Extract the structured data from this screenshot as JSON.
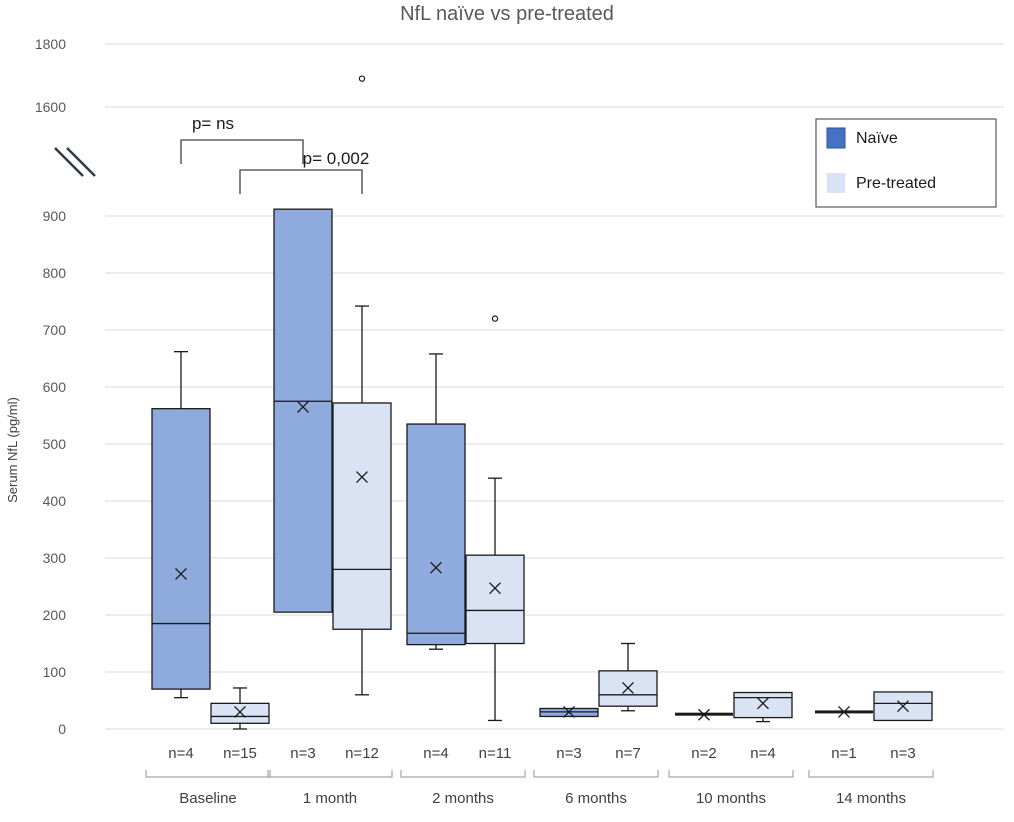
{
  "chart_data": {
    "type": "boxplot",
    "title": "NfL naïve vs pre-treated",
    "ylabel": "Serum NfL (pg/ml)",
    "y_break": true,
    "lower_ticks": [
      0,
      100,
      200,
      300,
      400,
      500,
      600,
      700,
      800,
      900
    ],
    "upper_ticks": [
      1600,
      1800
    ],
    "lower_range": [
      0,
      900
    ],
    "upper_range": [
      1450,
      1800
    ],
    "legend": {
      "position": "top-right",
      "entries": [
        {
          "label": "Naïve",
          "color": "#4472C4",
          "fill": "#8FAADC"
        },
        {
          "label": "Pre-treated",
          "color": "#DAE3F3",
          "fill": "#DAE3F3"
        }
      ]
    },
    "fill_naive": "#8FAADC",
    "fill_pretreated": "#DAE3F3",
    "groups": [
      {
        "name": "Baseline",
        "boxes": [
          {
            "series": "naive",
            "n": "n=4",
            "min": 55,
            "q1": 70,
            "median": 185,
            "q3": 562,
            "max": 662,
            "mean": 272,
            "outliers": []
          },
          {
            "series": "pretreated",
            "n": "n=15",
            "min": 0,
            "q1": 10,
            "median": 22,
            "q3": 45,
            "max": 72,
            "mean": 30,
            "outliers": []
          }
        ]
      },
      {
        "name": "1 month",
        "boxes": [
          {
            "series": "naive",
            "n": "n=3",
            "min": 205,
            "q1": 205,
            "median": 575,
            "q3": 912,
            "max": 912,
            "mean": 565,
            "outliers": []
          },
          {
            "series": "pretreated",
            "n": "n=12",
            "min": 60,
            "q1": 175,
            "median": 280,
            "q3": 572,
            "max": 742,
            "mean": 442,
            "outliers": [
              1690
            ]
          }
        ]
      },
      {
        "name": "2 months",
        "boxes": [
          {
            "series": "naive",
            "n": "n=4",
            "min": 140,
            "q1": 148,
            "median": 168,
            "q3": 535,
            "max": 658,
            "mean": 283,
            "outliers": []
          },
          {
            "series": "pretreated",
            "n": "n=11",
            "min": 15,
            "q1": 150,
            "median": 208,
            "q3": 305,
            "max": 440,
            "mean": 247,
            "outliers": [
              720
            ]
          }
        ]
      },
      {
        "name": "6 months",
        "boxes": [
          {
            "series": "naive",
            "n": "n=3",
            "min": 22,
            "q1": 22,
            "median": 30,
            "q3": 36,
            "max": 36,
            "mean": 30,
            "outliers": []
          },
          {
            "series": "pretreated",
            "n": "n=7",
            "min": 32,
            "q1": 40,
            "median": 60,
            "q3": 102,
            "max": 150,
            "mean": 72,
            "outliers": []
          }
        ]
      },
      {
        "name": "10 months",
        "boxes": [
          {
            "series": "naive",
            "n": "n=2",
            "min": 24,
            "q1": 24,
            "median": 25,
            "q3": 26,
            "max": 26,
            "mean": 25,
            "outliers": []
          },
          {
            "series": "pretreated",
            "n": "n=4",
            "min": 13,
            "q1": 20,
            "median": 55,
            "q3": 64,
            "max": 64,
            "mean": 45,
            "outliers": []
          }
        ]
      },
      {
        "name": "14 months",
        "boxes": [
          {
            "series": "naive",
            "n": "n=1",
            "min": 30,
            "q1": 30,
            "median": 30,
            "q3": 30,
            "max": 30,
            "mean": 30,
            "outliers": []
          },
          {
            "series": "pretreated",
            "n": "n=3",
            "min": 15,
            "q1": 15,
            "median": 45,
            "q3": 65,
            "max": 65,
            "mean": 40,
            "outliers": []
          }
        ]
      }
    ],
    "annotations": [
      {
        "text": "p= ns",
        "from": "Baseline naive",
        "to": "1 month naive"
      },
      {
        "text": "p= 0,002",
        "from": "Baseline pretreated",
        "to": "1 month pretreated"
      }
    ]
  }
}
